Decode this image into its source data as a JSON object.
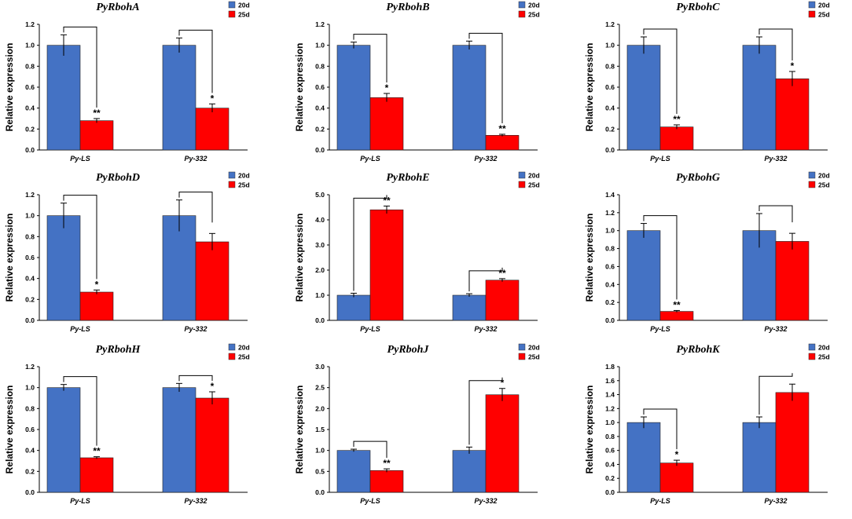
{
  "colors": {
    "s20": "#4472c4",
    "s25": "#ff0000",
    "text": "#000000"
  },
  "chart_data": [
    {
      "type": "bar",
      "title": "PyRbohA",
      "ylabel": "Relative expression",
      "xlabel": "",
      "categories": [
        "Py-LS",
        "Py-332"
      ],
      "ylim": [
        0,
        1.2
      ],
      "yticks": [
        "0.0",
        "0.2",
        "0.4",
        "0.6",
        "0.8",
        "1.0",
        "1.2"
      ],
      "series": [
        {
          "name": "20d",
          "values": [
            1.0,
            1.0
          ],
          "errors": [
            0.1,
            0.07
          ]
        },
        {
          "name": "25d",
          "values": [
            0.28,
            0.4
          ],
          "errors": [
            0.02,
            0.04
          ]
        }
      ],
      "annotations": [
        "**",
        "*"
      ]
    },
    {
      "type": "bar",
      "title": "PyRbohB",
      "ylabel": "Relative expression",
      "xlabel": "",
      "categories": [
        "Py-LS",
        "Py-332"
      ],
      "ylim": [
        0,
        1.2
      ],
      "yticks": [
        "0.0",
        "0.2",
        "0.4",
        "0.6",
        "0.8",
        "1.0",
        "1.2"
      ],
      "series": [
        {
          "name": "20d",
          "values": [
            1.0,
            1.0
          ],
          "errors": [
            0.03,
            0.04
          ]
        },
        {
          "name": "25d",
          "values": [
            0.5,
            0.14
          ],
          "errors": [
            0.04,
            0.01
          ]
        }
      ],
      "annotations": [
        "*",
        "**"
      ]
    },
    {
      "type": "bar",
      "title": "PyRbohC",
      "ylabel": "Relative expression",
      "xlabel": "",
      "categories": [
        "Py-LS",
        "Py-332"
      ],
      "ylim": [
        0,
        1.2
      ],
      "yticks": [
        "0.0",
        "0.2",
        "0.4",
        "0.6",
        "0.8",
        "1.0",
        "1.2"
      ],
      "series": [
        {
          "name": "20d",
          "values": [
            1.0,
            1.0
          ],
          "errors": [
            0.08,
            0.08
          ]
        },
        {
          "name": "25d",
          "values": [
            0.22,
            0.68
          ],
          "errors": [
            0.02,
            0.07
          ]
        }
      ],
      "annotations": [
        "**",
        "*"
      ]
    },
    {
      "type": "bar",
      "title": "PyRbohD",
      "ylabel": "Relative expression",
      "xlabel": "",
      "categories": [
        "Py-LS",
        "Py-332"
      ],
      "ylim": [
        0,
        1.2
      ],
      "yticks": [
        "0.0",
        "0.2",
        "0.4",
        "0.6",
        "0.8",
        "1.0",
        "1.2"
      ],
      "series": [
        {
          "name": "20d",
          "values": [
            1.0,
            1.0
          ],
          "errors": [
            0.12,
            0.15
          ]
        },
        {
          "name": "25d",
          "values": [
            0.27,
            0.75
          ],
          "errors": [
            0.02,
            0.08
          ]
        }
      ],
      "annotations": [
        "*",
        ""
      ]
    },
    {
      "type": "bar",
      "title": "PyRbohE",
      "ylabel": "Relative expression",
      "xlabel": "",
      "categories": [
        "Py-LS",
        "Py-332"
      ],
      "ylim": [
        0,
        5.0
      ],
      "yticks": [
        "0.0",
        "1.0",
        "2.0",
        "3.0",
        "4.0",
        "5.0"
      ],
      "series": [
        {
          "name": "20d",
          "values": [
            1.0,
            1.0
          ],
          "errors": [
            0.08,
            0.06
          ]
        },
        {
          "name": "25d",
          "values": [
            4.4,
            1.6
          ],
          "errors": [
            0.15,
            0.06
          ]
        }
      ],
      "annotations": [
        "**",
        "**"
      ]
    },
    {
      "type": "bar",
      "title": "PyRbohG",
      "ylabel": "Relative expression",
      "xlabel": "",
      "categories": [
        "Py-LS",
        "Py-332"
      ],
      "ylim": [
        0,
        1.4
      ],
      "yticks": [
        "0.0",
        "0.2",
        "0.4",
        "0.6",
        "0.8",
        "1.0",
        "1.2",
        "1.4"
      ],
      "series": [
        {
          "name": "20d",
          "values": [
            1.0,
            1.0
          ],
          "errors": [
            0.08,
            0.19
          ]
        },
        {
          "name": "25d",
          "values": [
            0.1,
            0.88
          ],
          "errors": [
            0.01,
            0.09
          ]
        }
      ],
      "annotations": [
        "**",
        ""
      ]
    },
    {
      "type": "bar",
      "title": "PyRbohH",
      "ylabel": "Relative expression",
      "xlabel": "",
      "categories": [
        "Py-LS",
        "Py-332"
      ],
      "ylim": [
        0,
        1.2
      ],
      "yticks": [
        "0.0",
        "0.2",
        "0.4",
        "0.6",
        "0.8",
        "1.0",
        "1.2"
      ],
      "series": [
        {
          "name": "20d",
          "values": [
            1.0,
            1.0
          ],
          "errors": [
            0.03,
            0.04
          ]
        },
        {
          "name": "25d",
          "values": [
            0.33,
            0.9
          ],
          "errors": [
            0.01,
            0.06
          ]
        }
      ],
      "annotations": [
        "**",
        "*"
      ]
    },
    {
      "type": "bar",
      "title": "PyRbohJ",
      "ylabel": "Relative expression",
      "xlabel": "",
      "categories": [
        "Py-LS",
        "Py-332"
      ],
      "ylim": [
        0,
        3.0
      ],
      "yticks": [
        "0.0",
        "0.5",
        "1.0",
        "1.5",
        "2.0",
        "2.5",
        "3.0"
      ],
      "series": [
        {
          "name": "20d",
          "values": [
            1.0,
            1.0
          ],
          "errors": [
            0.03,
            0.08
          ]
        },
        {
          "name": "25d",
          "values": [
            0.52,
            2.33
          ],
          "errors": [
            0.04,
            0.15
          ]
        }
      ],
      "annotations": [
        "**",
        "*"
      ]
    },
    {
      "type": "bar",
      "title": "PyRbohK",
      "ylabel": "Relative expression",
      "xlabel": "",
      "categories": [
        "Py-LS",
        "Py-332"
      ],
      "ylim": [
        0,
        1.8
      ],
      "yticks": [
        "0.0",
        "0.2",
        "0.4",
        "0.6",
        "0.8",
        "1.0",
        "1.2",
        "1.4",
        "1.6",
        "1.8"
      ],
      "series": [
        {
          "name": "20d",
          "values": [
            1.0,
            1.0
          ],
          "errors": [
            0.08,
            0.08
          ]
        },
        {
          "name": "25d",
          "values": [
            0.42,
            1.43
          ],
          "errors": [
            0.04,
            0.12
          ]
        }
      ],
      "annotations": [
        "*",
        ""
      ]
    }
  ]
}
